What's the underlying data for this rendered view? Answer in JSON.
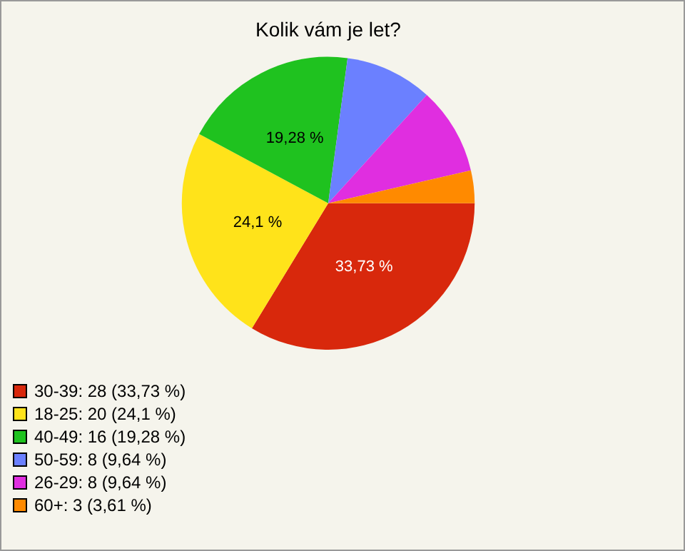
{
  "chart_data": {
    "type": "pie",
    "title": "Kolik vám je let?",
    "categories": [
      "30-39: 28 (33,73 %)",
      "18-25: 20 (24,1 %)",
      "40-49: 16 (19,28 %)",
      "50-59: 8 (9,64 %)",
      "26-29: 8 (9,64 %)",
      "60+: 3 (3,61 %)"
    ],
    "values": [
      33.73,
      24.1,
      19.28,
      9.64,
      9.64,
      3.61
    ],
    "colors": [
      "#d8280c",
      "#ffe31a",
      "#1fc21f",
      "#6b80ff",
      "#e02ee0",
      "#ff8a00"
    ],
    "value_labels": [
      "33,73 %",
      "24,1 %",
      "19,28 %",
      null,
      null,
      null
    ],
    "legend": "bottom left"
  }
}
